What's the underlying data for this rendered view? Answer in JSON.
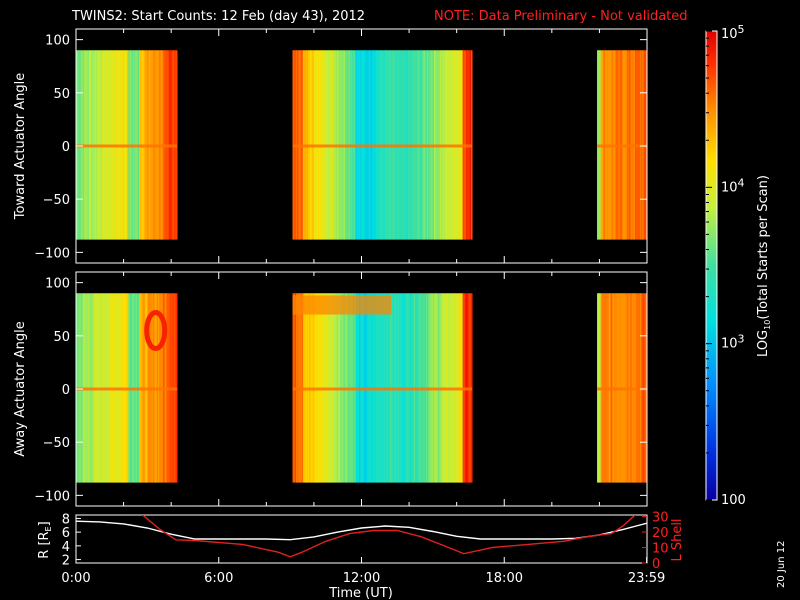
{
  "header": {
    "title": "TWINS2: Start Counts: 12 Feb (day  43), 2012",
    "note": "NOTE: Data Preliminary - Not validated"
  },
  "footer": {
    "date_stamp": "20 Jun 12"
  },
  "colors": {
    "background": "#000000",
    "axis": "#ffffff",
    "note": "#ff2020",
    "rshell": "#ffffff",
    "lshell": "#e02020"
  },
  "chart_data": [
    {
      "type": "heatmap",
      "name_id": "toward",
      "ylabel": "Toward Actuator Angle",
      "ylim": [
        -110,
        110
      ],
      "yticks": [
        -100,
        -50,
        0,
        50,
        100
      ],
      "xlim": [
        0,
        24
      ],
      "data_ylim": [
        -88,
        90
      ],
      "segments": [
        {
          "start": 0.0,
          "end": 4.25,
          "profile": "left"
        },
        {
          "start": 9.1,
          "end": 16.65,
          "profile": "mid"
        },
        {
          "start": 21.9,
          "end": 24.0,
          "profile": "right"
        }
      ]
    },
    {
      "type": "heatmap",
      "name_id": "away",
      "ylabel": "Away Actuator Angle",
      "ylim": [
        -110,
        110
      ],
      "yticks": [
        -100,
        -50,
        0,
        50,
        100
      ],
      "xlim": [
        0,
        24
      ],
      "data_ylim": [
        -88,
        90
      ],
      "segments": [
        {
          "start": 0.0,
          "end": 4.25,
          "profile": "left"
        },
        {
          "start": 9.1,
          "end": 16.65,
          "profile": "mid"
        },
        {
          "start": 21.9,
          "end": 24.0,
          "profile": "right"
        }
      ]
    },
    {
      "type": "line",
      "name_id": "orbit",
      "xlabel": "Time (UT)",
      "xticks": [
        0,
        6,
        12,
        18,
        23.983
      ],
      "xtick_labels": [
        "0:00",
        "6:00",
        "12:00",
        "18:00",
        "23:59"
      ],
      "ylabel_left": "R [R",
      "ylabel_left_sub": "E",
      "ylabel_left_end": "]",
      "ylim_left": [
        1.5,
        8.5
      ],
      "yticks_left": [
        2,
        4,
        6,
        8
      ],
      "ylabel_right": "L Shell",
      "ylim_right": [
        0,
        31
      ],
      "yticks_right": [
        0,
        10,
        20,
        30
      ],
      "series": [
        {
          "axis": "left",
          "x": [
            0,
            1,
            2,
            3,
            4,
            5,
            6,
            7,
            8,
            9,
            10,
            11,
            12,
            13,
            14,
            15,
            16,
            17,
            18,
            19,
            20,
            21,
            22,
            23,
            24
          ],
          "y": [
            7.6,
            7.5,
            7.2,
            6.6,
            5.7,
            5.0,
            5.0,
            5.0,
            5.0,
            4.9,
            5.3,
            6.0,
            6.6,
            6.9,
            6.7,
            6.1,
            5.4,
            5.0,
            5.0,
            5.0,
            5.0,
            5.1,
            5.6,
            6.4,
            7.3
          ]
        },
        {
          "axis": "right",
          "x": [
            2.8,
            3.5,
            4.2,
            5.0,
            7.0,
            8.5,
            9.0,
            9.5,
            10.5,
            11.5,
            12.5,
            13.5,
            14.5,
            15.5,
            16.3,
            17.5,
            19.0,
            20.5,
            21.5,
            22.0,
            22.5,
            23.0,
            23.5
          ],
          "y": [
            31,
            22,
            15,
            14.5,
            12,
            7,
            4,
            7,
            14,
            19,
            21,
            21,
            17,
            11,
            6,
            10,
            12,
            14,
            17,
            18,
            19,
            24,
            31
          ]
        }
      ]
    }
  ],
  "colorbar": {
    "label_prefix": "LOG",
    "label_sub": "10",
    "label_suffix": "(Total Starts per Scan)",
    "tick_labels": [
      {
        "mantissa": "10",
        "exp": "5",
        "value": 100000
      },
      {
        "mantissa": "10",
        "exp": "4",
        "value": 10000
      },
      {
        "mantissa": "10",
        "exp": "3",
        "value": 1000
      },
      {
        "mantissa": "100",
        "exp": "",
        "value": 100
      }
    ],
    "vmin": 100,
    "vmax": 100000,
    "scale": "log"
  }
}
